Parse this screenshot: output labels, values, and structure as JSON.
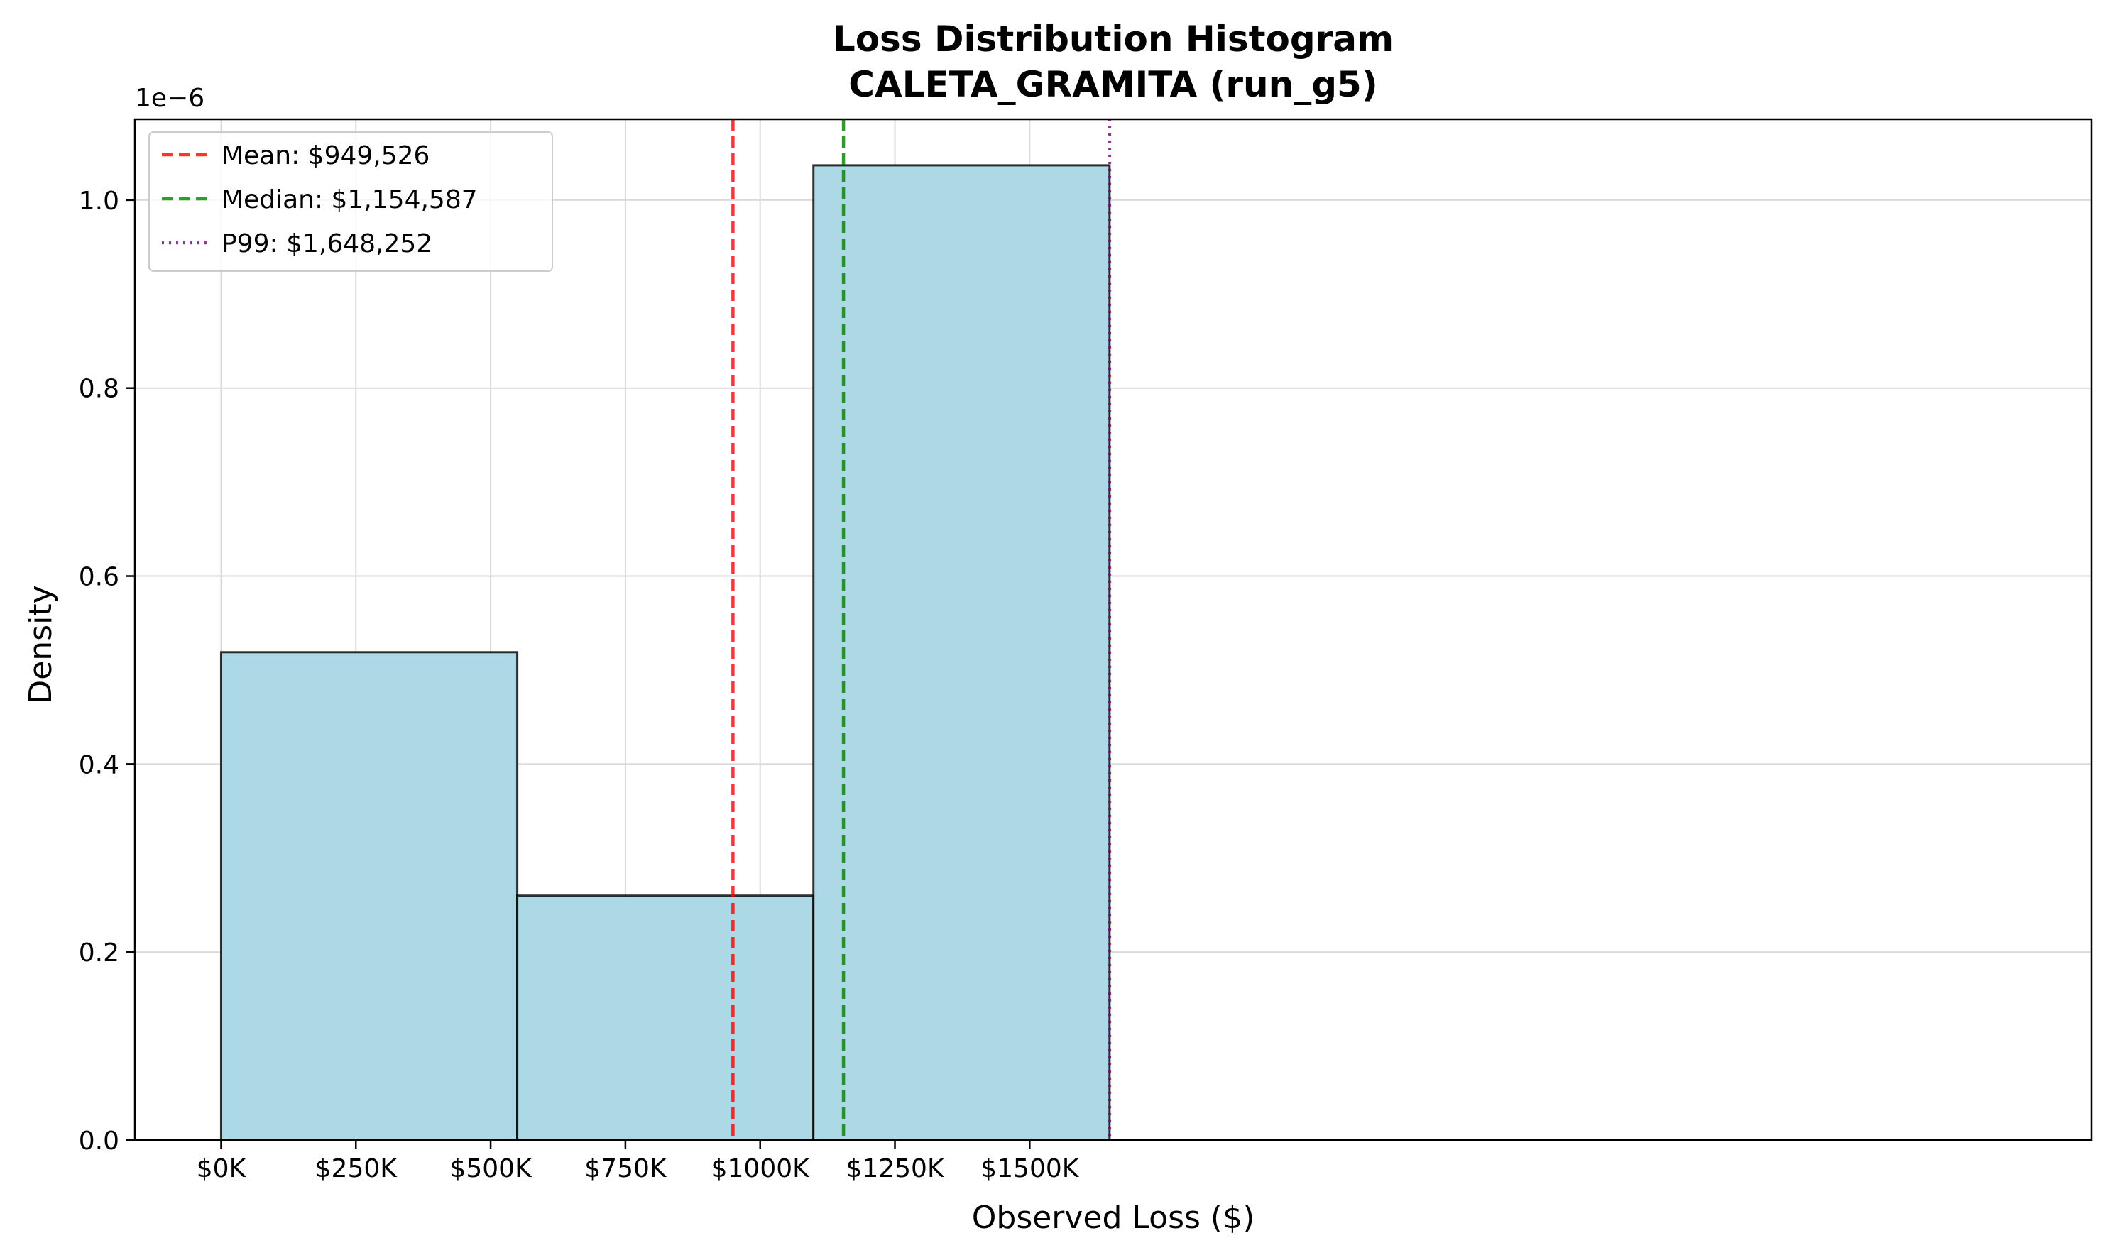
{
  "chart_data": {
    "type": "bar",
    "title": "Loss Distribution Histogram",
    "subtitle": "CALETA_GRAMITA (run_g5)",
    "xlabel": "Observed Loss ($)",
    "ylabel": "Density",
    "y_offset_label": "1e−6",
    "xlim": [
      -160000,
      3470000
    ],
    "ylim": [
      0,
      1.086
    ],
    "grid": true,
    "legend_position": "top-left",
    "bar_color": "#ADD8E6",
    "bar_edge_color": "#000000",
    "bins": [
      {
        "x0": 0,
        "x1": 549417,
        "density": 0.519
      },
      {
        "x0": 549417,
        "x1": 1098835,
        "density": 0.26
      },
      {
        "x0": 1098835,
        "x1": 1648252,
        "density": 1.037
      }
    ],
    "x_ticks": [
      {
        "value": 0,
        "label": "$0K"
      },
      {
        "value": 250000,
        "label": "$250K"
      },
      {
        "value": 500000,
        "label": "$500K"
      },
      {
        "value": 750000,
        "label": "$750K"
      },
      {
        "value": 1000000,
        "label": "$1000K"
      },
      {
        "value": 1250000,
        "label": "$1250K"
      },
      {
        "value": 1500000,
        "label": "$1500K"
      }
    ],
    "y_ticks": [
      {
        "value": 0.0,
        "label": "0.0"
      },
      {
        "value": 0.2,
        "label": "0.2"
      },
      {
        "value": 0.4,
        "label": "0.4"
      },
      {
        "value": 0.6,
        "label": "0.6"
      },
      {
        "value": 0.8,
        "label": "0.8"
      },
      {
        "value": 1.0,
        "label": "1.0"
      }
    ],
    "reference_lines": [
      {
        "name": "Mean: $949,526",
        "value": 949526,
        "color": "#FF0000",
        "style": "dashed"
      },
      {
        "name": "Median: $1,154,587",
        "value": 1154587,
        "color": "#008000",
        "style": "dashed"
      },
      {
        "name": "P99: $1,648,252",
        "value": 1648252,
        "color": "#800080",
        "style": "dotted"
      }
    ]
  }
}
